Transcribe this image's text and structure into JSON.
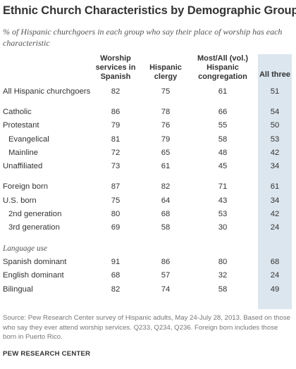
{
  "header": {
    "title": "Ethnic Church Characteristics by Demographic Group",
    "subtitle": "% of Hispanic churchgoers in each group who say their place of worship has each characteristic"
  },
  "footer": {
    "source": "Source: Pew Research Center survey of Hispanic adults, May 24-July 28, 2013. Based on those who say they ever attend worship services. Q233, Q234, Q236. Foreign born includes those born in Puerto Rico.",
    "credit": "PEW RESEARCH CENTER"
  },
  "colors": {
    "highlight_column": "#dce6ee"
  },
  "chart_data": {
    "type": "table",
    "title": "Ethnic Church Characteristics by Demographic Group",
    "columns": [
      "Worship services in Spanish",
      "Hispanic clergy",
      "Most/All (vol.) Hispanic congregation",
      "All three"
    ],
    "highlighted_column": "All three",
    "rows": [
      {
        "label": "All Hispanic churchgoers",
        "values": [
          "82",
          "75",
          "61",
          "51"
        ]
      },
      {
        "label": "Catholic",
        "values": [
          "86",
          "78",
          "66",
          "54"
        ]
      },
      {
        "label": "Protestant",
        "values": [
          "79",
          "76",
          "55",
          "50"
        ]
      },
      {
        "label": "Evangelical",
        "values": [
          "81",
          "79",
          "58",
          "53"
        ]
      },
      {
        "label": "Mainline",
        "values": [
          "72",
          "65",
          "48",
          "42"
        ]
      },
      {
        "label": "Unaffiliated",
        "values": [
          "73",
          "61",
          "45",
          "34"
        ]
      },
      {
        "label": "Foreign born",
        "values": [
          "87",
          "82",
          "71",
          "61"
        ]
      },
      {
        "label": "U.S. born",
        "values": [
          "75",
          "64",
          "43",
          "34"
        ]
      },
      {
        "label": "2nd generation",
        "values": [
          "80",
          "68",
          "53",
          "42"
        ]
      },
      {
        "label": "3rd generation",
        "values": [
          "69",
          "58",
          "30",
          "24"
        ]
      },
      {
        "label": "Language use",
        "values": []
      },
      {
        "label": "Spanish dominant",
        "values": [
          "91",
          "86",
          "80",
          "68"
        ]
      },
      {
        "label": "English dominant",
        "values": [
          "68",
          "57",
          "32",
          "24"
        ]
      },
      {
        "label": "Bilingual",
        "values": [
          "82",
          "74",
          "58",
          "49"
        ]
      }
    ]
  }
}
